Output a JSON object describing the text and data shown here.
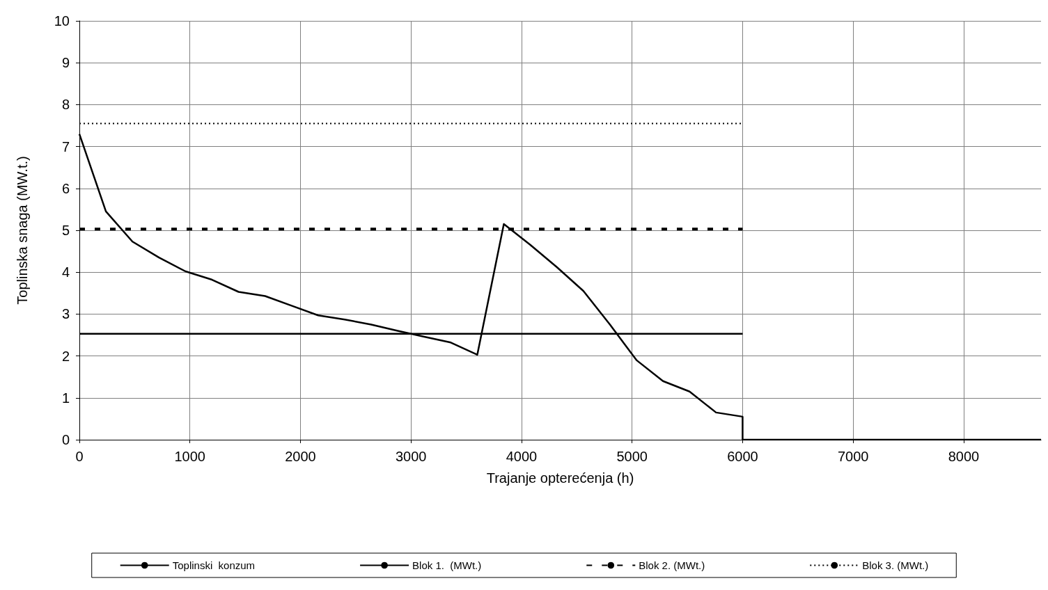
{
  "chart_data": {
    "type": "line",
    "xlabel": "Trajanje opterećenja (h)",
    "ylabel": "Toplinska snaga (MW.t.)",
    "xlim": [
      0,
      8700
    ],
    "xticks": [
      0,
      1000,
      2000,
      3000,
      4000,
      5000,
      6000,
      7000,
      8000
    ],
    "ylim": [
      0,
      10
    ],
    "yticks": [
      0,
      1,
      2,
      3,
      4,
      5,
      6,
      7,
      8,
      9,
      10
    ],
    "grid": true,
    "legend": "bottom",
    "marker": "none",
    "series": [
      {
        "name": "Toplinski  konzum",
        "color": "#000000",
        "line_style": "solid",
        "x": [
          0,
          240,
          480,
          720,
          960,
          1200,
          1440,
          1680,
          1920,
          2160,
          2400,
          2640,
          2880,
          3120,
          3360,
          3600,
          3840,
          4080,
          4320,
          4560,
          4800,
          5040,
          5280,
          5520,
          5760,
          6000,
          6000,
          8700
        ],
        "values": [
          7.3,
          5.45,
          4.73,
          4.35,
          4.02,
          3.82,
          3.53,
          3.43,
          3.2,
          2.97,
          2.87,
          2.75,
          2.6,
          2.46,
          2.32,
          2.03,
          5.15,
          4.65,
          4.12,
          3.55,
          2.75,
          1.9,
          1.4,
          1.15,
          0.65,
          0.55,
          0,
          0
        ]
      },
      {
        "name": "Blok 1.  (MWt.)",
        "color": "#000000",
        "line_style": "solid",
        "x": [
          0,
          6000
        ],
        "values": [
          2.53,
          2.53
        ]
      },
      {
        "name": "Blok 2. (MWt.)",
        "color": "#000000",
        "line_style": "dashed",
        "x": [
          0,
          6000
        ],
        "values": [
          5.03,
          5.03
        ]
      },
      {
        "name": "Blok 3. (MWt.)",
        "color": "#000000",
        "line_style": "dotted",
        "x": [
          0,
          6000
        ],
        "values": [
          7.55,
          7.55
        ]
      }
    ]
  }
}
